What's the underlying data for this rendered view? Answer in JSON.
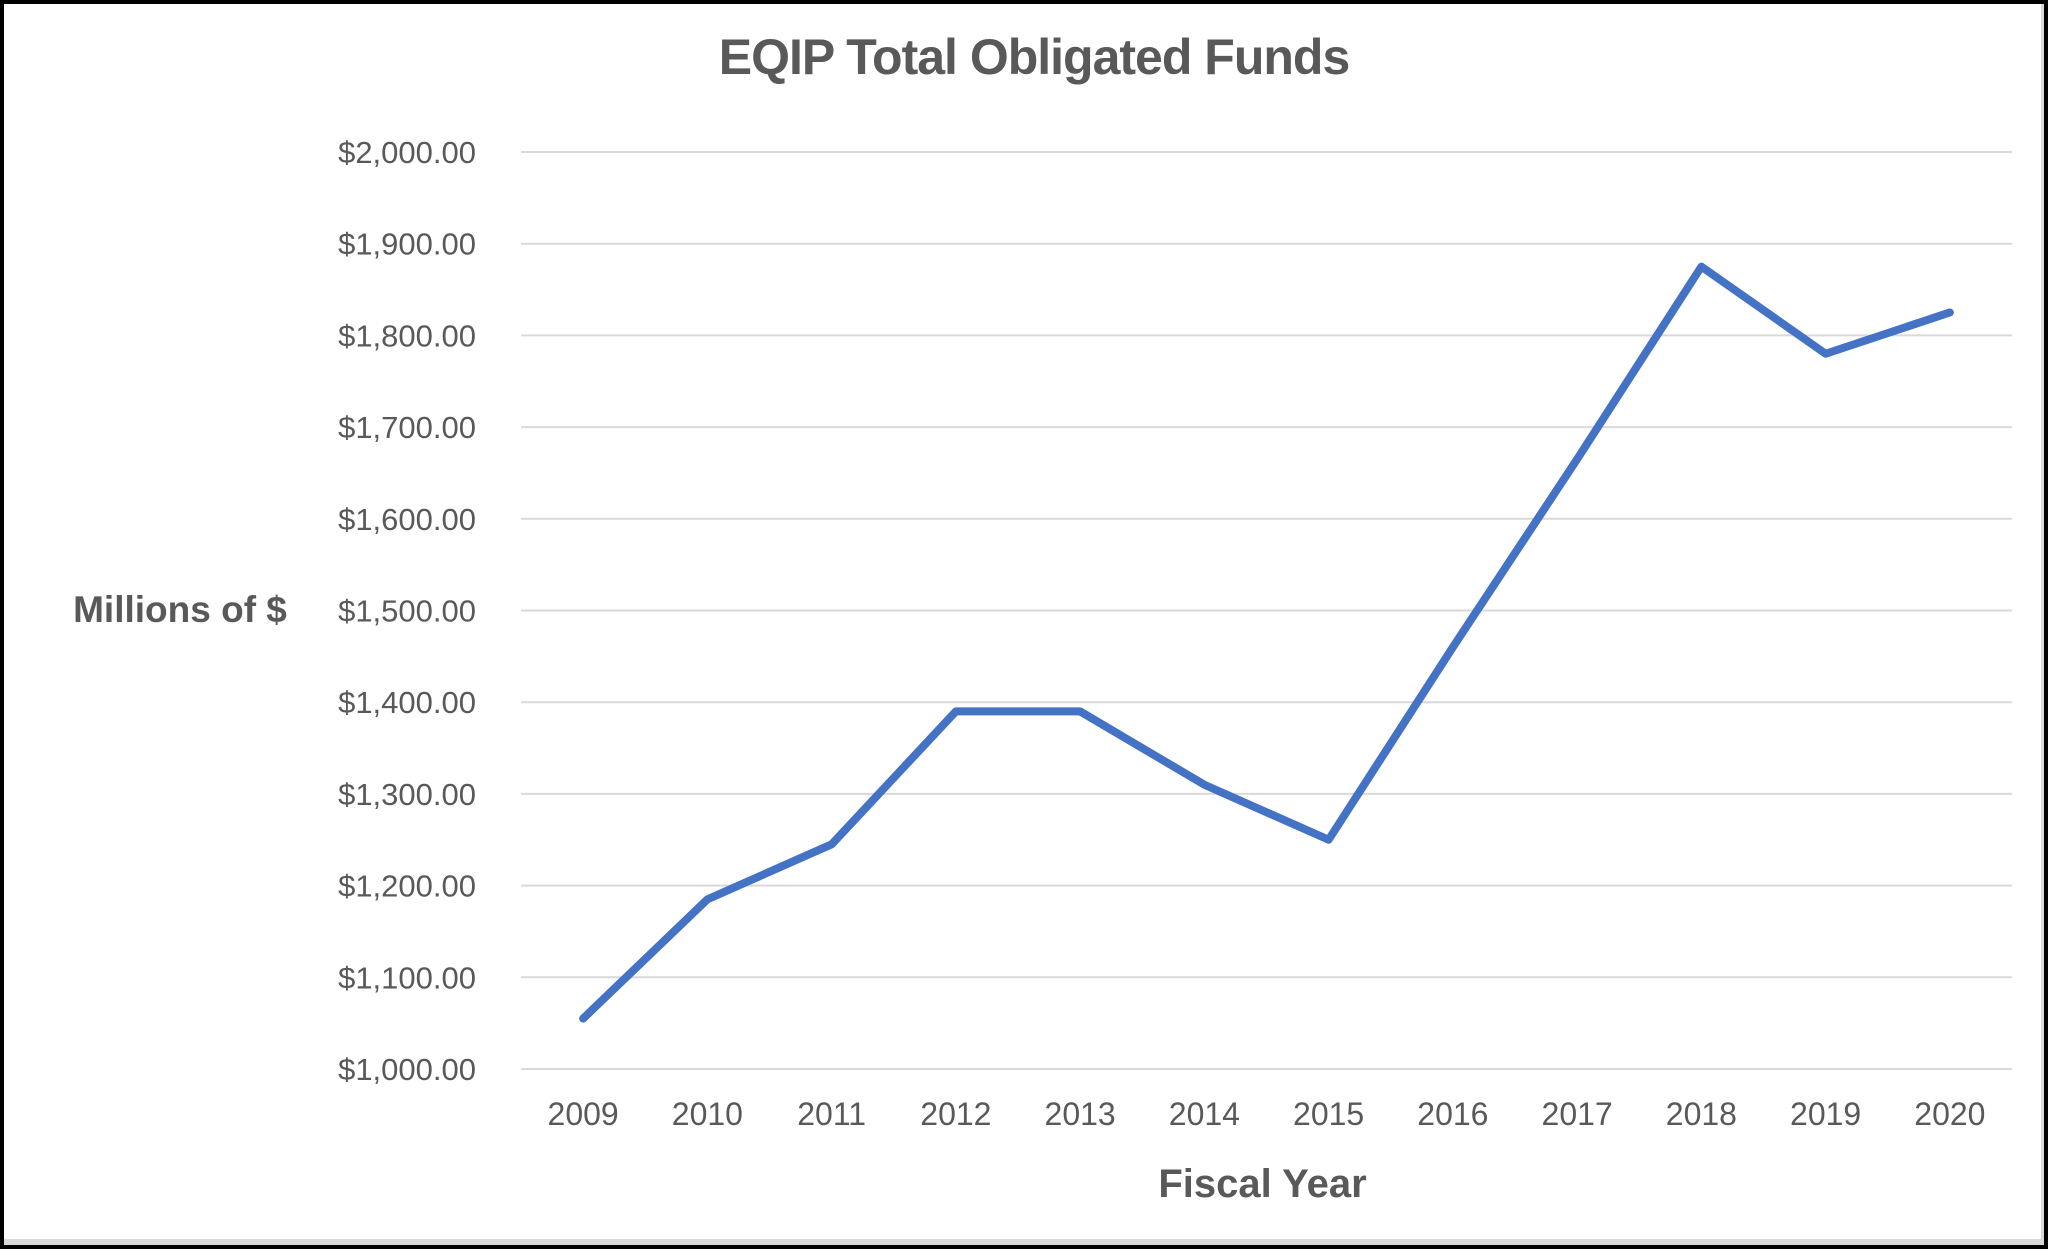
{
  "window": {
    "background": "#FFFFFF",
    "border_color": "#000000"
  },
  "chart_data": {
    "type": "line",
    "title": "EQIP Total Obligated Funds",
    "xlabel": "Fiscal Year",
    "ylabel": "Millions of $",
    "categories": [
      "2009",
      "2010",
      "2011",
      "2012",
      "2013",
      "2014",
      "2015",
      "2016",
      "2017",
      "2018",
      "2019",
      "2020"
    ],
    "values": [
      1055,
      1185,
      1245,
      1390,
      1390,
      1310,
      1250,
      1460,
      1665,
      1875,
      1780,
      1825
    ],
    "ylim": [
      1000,
      2000
    ],
    "ytick_step": 100,
    "ytick_labels": [
      "$2,000.00",
      "$1,900.00",
      "$1,800.00",
      "$1,700.00",
      "$1,600.00",
      "$1,500.00",
      "$1,400.00",
      "$1,300.00",
      "$1,200.00",
      "$1,100.00",
      "$1,000.00"
    ],
    "grid": "horizontal-only",
    "legend": "none",
    "colors": {
      "line": "#4472C4",
      "text": "#595959",
      "gridline": "#D9D9D9"
    }
  }
}
